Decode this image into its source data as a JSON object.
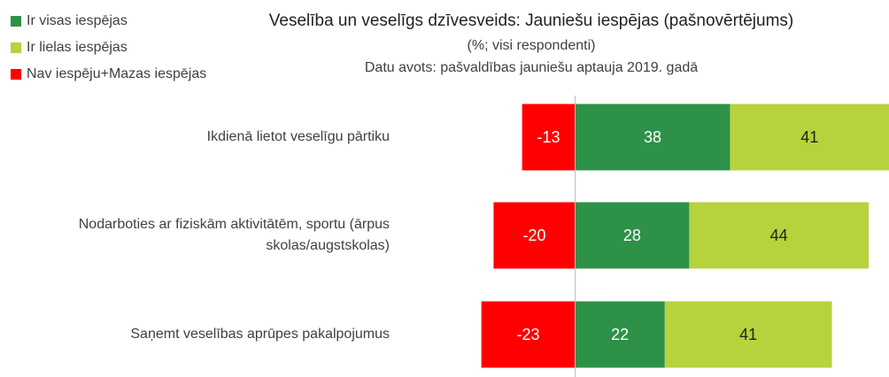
{
  "chart_data": {
    "type": "diverging-bar",
    "title": "Veselība un veselīgs dzīvesveids: Jauniešu iespējas (pašnovērtējums)",
    "subtitle": "(%; visi respondenti)",
    "source": "Datu avots: pašvaldības jauniešu aptauja 2019. gadā",
    "categories": [
      "Ikdienā lietot veselīgu pārtiku",
      "Nodarboties ar fiziskām aktivitātēm, sportu (ārpus skolas/augstskolas)",
      "Saņemt veselības aprūpes pakalpojumus"
    ],
    "series": [
      {
        "name": "Ir visas iespējas",
        "color": "#2e9148",
        "values": [
          38,
          28,
          22
        ]
      },
      {
        "name": "Ir lielas iespējas",
        "color": "#b6d23c",
        "values": [
          41,
          44,
          41
        ]
      },
      {
        "name": "Nav iespēju+Mazas iespējas",
        "color": "#ff0000",
        "values": [
          -13,
          -20,
          -23
        ]
      }
    ],
    "xlim": [
      -24,
      77
    ],
    "legend": "top-left"
  }
}
